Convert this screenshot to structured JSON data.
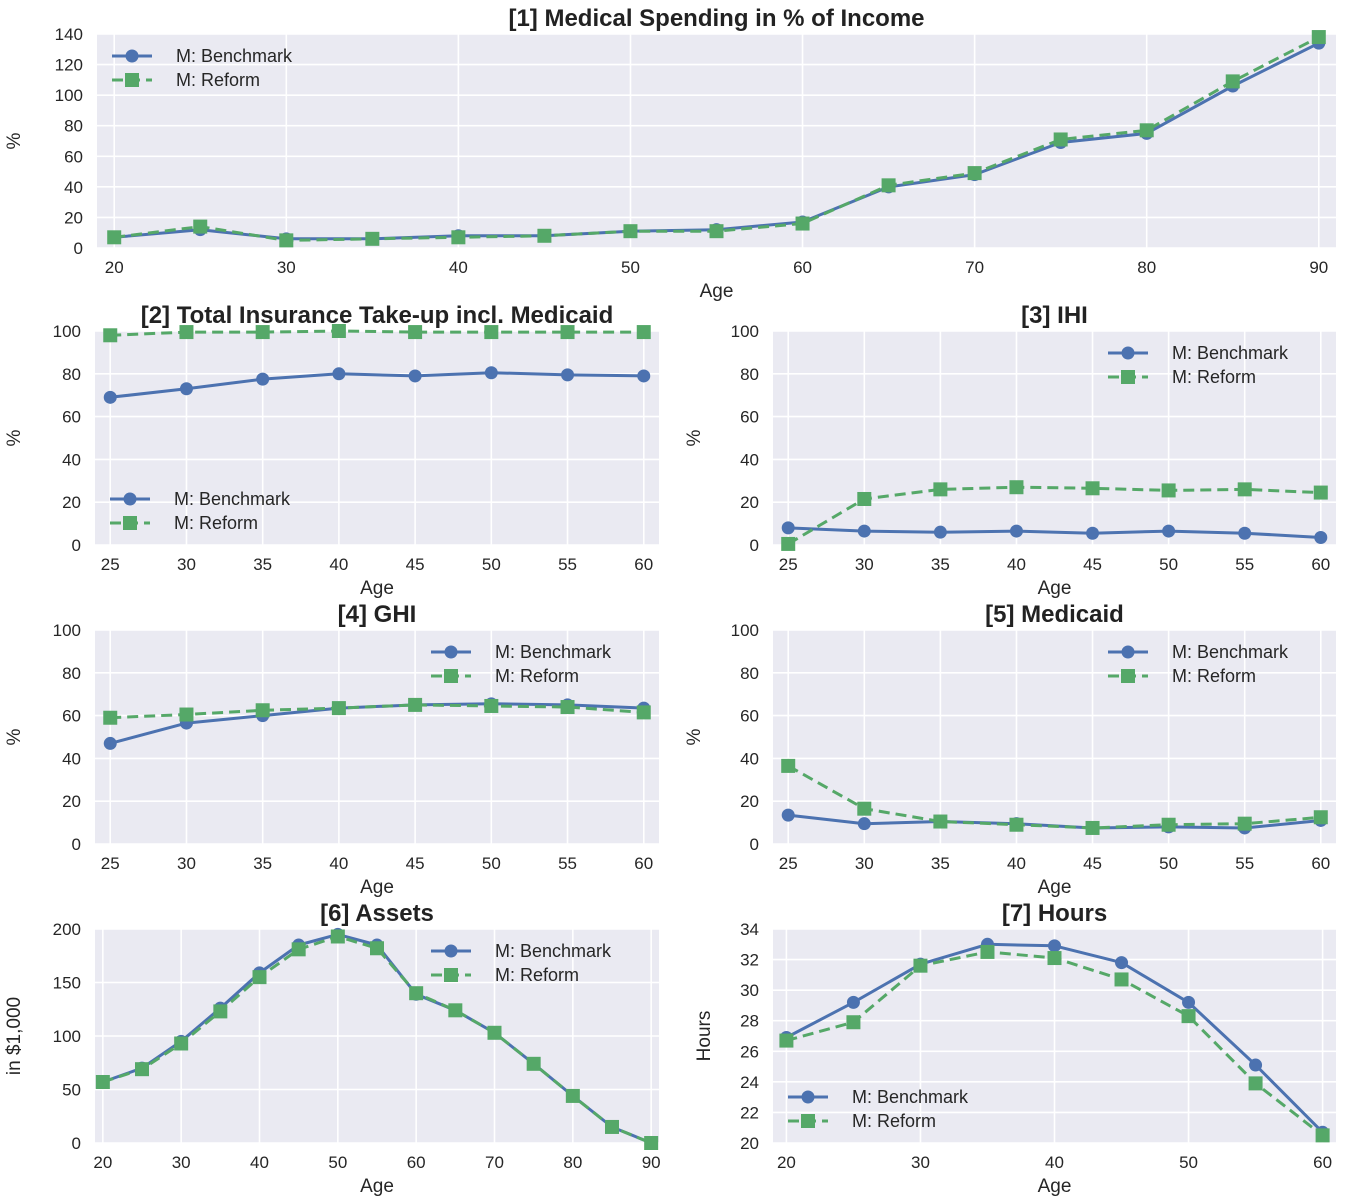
{
  "figure": {
    "background": "#ffffff",
    "panel_bg": "#EAEAF2",
    "grid_color": "#ffffff"
  },
  "series_style": {
    "benchmark": {
      "color": "#4C72B0",
      "marker": "circle",
      "line": "solid"
    },
    "reform": {
      "color": "#55A868",
      "marker": "square",
      "line": "dashed"
    }
  },
  "chart_data": [
    {
      "type": "line",
      "title": "[1] Medical Spending in % of Income",
      "xlabel": "Age",
      "ylabel": "%",
      "xlim": [
        19,
        91
      ],
      "ylim": [
        0,
        140
      ],
      "xticks": [
        20,
        30,
        40,
        50,
        60,
        70,
        80,
        90
      ],
      "yticks": [
        0,
        20,
        40,
        60,
        80,
        100,
        120,
        140
      ],
      "legend": "upper-left",
      "x": [
        20,
        25,
        30,
        35,
        40,
        45,
        50,
        55,
        60,
        65,
        70,
        75,
        80,
        85,
        90
      ],
      "series": [
        {
          "name": "M: Benchmark",
          "values": [
            7,
            12,
            6,
            6,
            8,
            8,
            11,
            12,
            17,
            40,
            48,
            69,
            75,
            106,
            134
          ]
        },
        {
          "name": "M: Reform",
          "values": [
            7,
            14,
            5,
            6,
            7,
            8,
            11,
            11,
            16,
            41,
            49,
            71,
            77,
            109,
            138
          ]
        }
      ]
    },
    {
      "type": "line",
      "title": "[2] Total Insurance Take-up incl. Medicaid",
      "xlabel": "Age",
      "ylabel": "%",
      "xlim": [
        24,
        61
      ],
      "ylim": [
        0,
        100
      ],
      "xticks": [
        25,
        30,
        35,
        40,
        45,
        50,
        55,
        60
      ],
      "yticks": [
        0,
        20,
        40,
        60,
        80,
        100
      ],
      "legend": "lower-left",
      "x": [
        25,
        30,
        35,
        40,
        45,
        50,
        55,
        60
      ],
      "series": [
        {
          "name": "M: Benchmark",
          "values": [
            69,
            73,
            77.5,
            80,
            79,
            80.5,
            79.5,
            79
          ]
        },
        {
          "name": "M: Reform",
          "values": [
            98,
            99.5,
            99.5,
            100,
            99.5,
            99.5,
            99.5,
            99.5
          ]
        }
      ]
    },
    {
      "type": "line",
      "title": "[3] IHI",
      "xlabel": "Age",
      "ylabel": "%",
      "xlim": [
        24,
        61
      ],
      "ylim": [
        0,
        100
      ],
      "xticks": [
        25,
        30,
        35,
        40,
        45,
        50,
        55,
        60
      ],
      "yticks": [
        0,
        20,
        40,
        60,
        80,
        100
      ],
      "legend": "upper-right",
      "x": [
        25,
        30,
        35,
        40,
        45,
        50,
        55,
        60
      ],
      "series": [
        {
          "name": "M: Benchmark",
          "values": [
            8,
            6.5,
            6,
            6.5,
            5.5,
            6.5,
            5.5,
            3.5
          ]
        },
        {
          "name": "M: Reform",
          "values": [
            0.5,
            21.5,
            26,
            27,
            26.5,
            25.5,
            26,
            24.5
          ]
        }
      ]
    },
    {
      "type": "line",
      "title": "[4] GHI",
      "xlabel": "Age",
      "ylabel": "%",
      "xlim": [
        24,
        61
      ],
      "ylim": [
        0,
        100
      ],
      "xticks": [
        25,
        30,
        35,
        40,
        45,
        50,
        55,
        60
      ],
      "yticks": [
        0,
        20,
        40,
        60,
        80,
        100
      ],
      "legend": "upper-right",
      "x": [
        25,
        30,
        35,
        40,
        45,
        50,
        55,
        60
      ],
      "series": [
        {
          "name": "M: Benchmark",
          "values": [
            47,
            56.5,
            60,
            63.5,
            65,
            65.5,
            65,
            63.5
          ]
        },
        {
          "name": "M: Reform",
          "values": [
            59,
            60.5,
            62.5,
            63.5,
            65,
            64.5,
            64,
            61.5
          ]
        }
      ]
    },
    {
      "type": "line",
      "title": "[5] Medicaid",
      "xlabel": "Age",
      "ylabel": "%",
      "xlim": [
        24,
        61
      ],
      "ylim": [
        0,
        100
      ],
      "xticks": [
        25,
        30,
        35,
        40,
        45,
        50,
        55,
        60
      ],
      "yticks": [
        0,
        20,
        40,
        60,
        80,
        100
      ],
      "legend": "upper-right",
      "x": [
        25,
        30,
        35,
        40,
        45,
        50,
        55,
        60
      ],
      "series": [
        {
          "name": "M: Benchmark",
          "values": [
            13.5,
            9.5,
            10.5,
            9.5,
            7.5,
            8,
            7.5,
            11
          ]
        },
        {
          "name": "M: Reform",
          "values": [
            36.5,
            16.5,
            10.5,
            9,
            7.5,
            9,
            9.5,
            12.5
          ]
        }
      ]
    },
    {
      "type": "line",
      "title": "[6] Assets",
      "xlabel": "Age",
      "ylabel": "in $1,000",
      "xlim": [
        19,
        91
      ],
      "ylim": [
        0,
        200
      ],
      "xticks": [
        20,
        30,
        40,
        50,
        60,
        70,
        80,
        90
      ],
      "yticks": [
        0,
        50,
        100,
        150,
        200
      ],
      "legend": "upper-right",
      "x": [
        20,
        25,
        30,
        35,
        40,
        45,
        50,
        55,
        60,
        65,
        70,
        75,
        80,
        85,
        90
      ],
      "series": [
        {
          "name": "M: Benchmark",
          "values": [
            57,
            70,
            95,
            126,
            159,
            185,
            195,
            185,
            139,
            124,
            103,
            74,
            44,
            15,
            0
          ]
        },
        {
          "name": "M: Reform",
          "values": [
            57,
            69,
            93,
            123,
            155,
            181,
            193,
            182,
            140,
            124,
            103,
            74,
            44,
            15,
            0
          ]
        }
      ]
    },
    {
      "type": "line",
      "title": "[7] Hours",
      "xlabel": "Age",
      "ylabel": "Hours",
      "xlim": [
        19,
        61
      ],
      "ylim": [
        20,
        34
      ],
      "xticks": [
        20,
        30,
        40,
        50,
        60
      ],
      "yticks": [
        20,
        22,
        24,
        26,
        28,
        30,
        32,
        34
      ],
      "legend": "lower-left",
      "x": [
        20,
        25,
        30,
        35,
        40,
        45,
        50,
        55,
        60
      ],
      "series": [
        {
          "name": "M: Benchmark",
          "values": [
            26.9,
            29.2,
            31.7,
            33,
            32.9,
            31.8,
            29.2,
            25.1,
            20.7
          ]
        },
        {
          "name": "M: Reform",
          "values": [
            26.7,
            27.9,
            31.6,
            32.5,
            32.1,
            30.7,
            28.3,
            23.9,
            20.5
          ]
        }
      ]
    }
  ]
}
